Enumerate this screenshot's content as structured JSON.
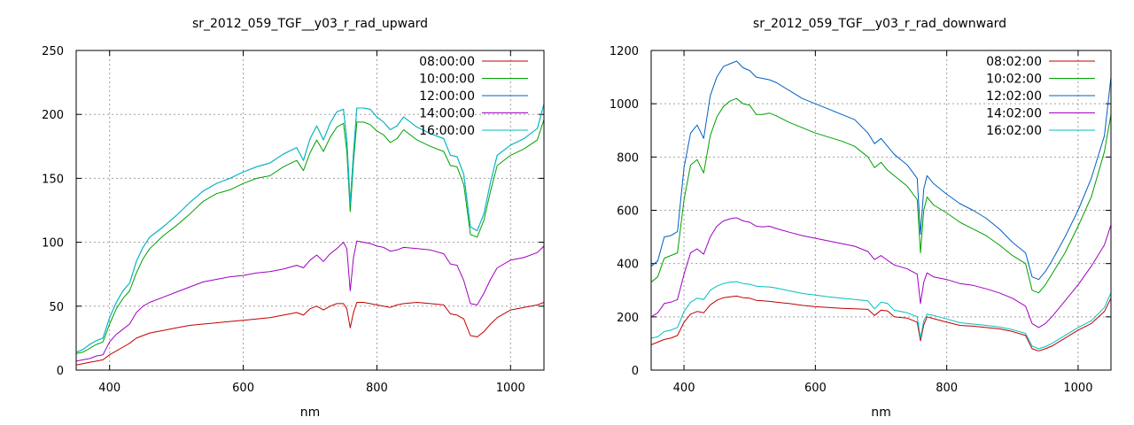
{
  "chart_data": [
    {
      "type": "line",
      "title": "sr_2012_059_TGF__y03_r_rad_upward",
      "xlabel": "nm",
      "ylabel": "",
      "xlim": [
        350,
        1050
      ],
      "ylim": [
        0,
        250
      ],
      "xticks": [
        "400",
        "600",
        "800",
        "1000"
      ],
      "yticks": [
        "0",
        "50",
        "100",
        "150",
        "200",
        "250"
      ],
      "grid": true,
      "legend_position": "top-right",
      "x": [
        350,
        360,
        370,
        380,
        390,
        400,
        410,
        420,
        430,
        440,
        450,
        460,
        480,
        500,
        520,
        540,
        560,
        580,
        600,
        620,
        640,
        660,
        680,
        690,
        700,
        710,
        720,
        730,
        740,
        750,
        755,
        760,
        765,
        770,
        780,
        790,
        800,
        810,
        820,
        830,
        840,
        860,
        880,
        900,
        910,
        920,
        930,
        940,
        950,
        960,
        970,
        980,
        1000,
        1020,
        1040,
        1050
      ],
      "series": [
        {
          "name": "08:00:00",
          "color": "#c00000",
          "values": [
            4,
            5,
            6,
            7,
            8,
            12,
            15,
            18,
            21,
            25,
            27,
            29,
            31,
            33,
            35,
            36,
            37,
            38,
            39,
            40,
            41,
            43,
            45,
            43,
            48,
            50,
            47,
            50,
            52,
            52,
            48,
            33,
            45,
            53,
            53,
            52,
            51,
            50,
            49,
            51,
            52,
            53,
            52,
            51,
            44,
            43,
            40,
            27,
            26,
            30,
            36,
            41,
            47,
            49,
            51,
            53
          ]
        },
        {
          "name": "10:00:00",
          "color": "#00a000",
          "values": [
            13,
            14,
            17,
            20,
            22,
            36,
            48,
            56,
            62,
            76,
            87,
            95,
            105,
            113,
            122,
            132,
            138,
            141,
            146,
            150,
            152,
            159,
            164,
            156,
            170,
            180,
            171,
            182,
            190,
            193,
            171,
            124,
            163,
            194,
            194,
            192,
            187,
            184,
            178,
            181,
            188,
            180,
            175,
            171,
            160,
            159,
            145,
            106,
            104,
            117,
            140,
            160,
            168,
            173,
            180,
            196
          ]
        },
        {
          "name": "12:00:00",
          "color": "#0060c0",
          "values": [
            14,
            16,
            20,
            23,
            25,
            41,
            53,
            62,
            68,
            85,
            96,
            104,
            112,
            121,
            131,
            140,
            146,
            150,
            155,
            159,
            162,
            169,
            174,
            164,
            181,
            191,
            180,
            193,
            202,
            204,
            180,
            130,
            170,
            205,
            205,
            204,
            198,
            194,
            188,
            191,
            198,
            190,
            185,
            181,
            168,
            167,
            153,
            112,
            109,
            122,
            147,
            168,
            176,
            181,
            189,
            208
          ]
        },
        {
          "name": "14:00:00",
          "color": "#a000c0",
          "values": [
            7,
            8,
            9,
            11,
            12,
            22,
            28,
            32,
            36,
            45,
            50,
            53,
            57,
            61,
            65,
            69,
            71,
            73,
            74,
            76,
            77,
            79,
            82,
            80,
            86,
            90,
            85,
            91,
            95,
            100,
            95,
            62,
            88,
            101,
            100,
            99,
            97,
            96,
            93,
            94,
            96,
            95,
            94,
            91,
            83,
            82,
            70,
            52,
            51,
            60,
            71,
            80,
            86,
            88,
            92,
            97
          ]
        },
        {
          "name": "16:00:00",
          "color": "#00c0c0",
          "values": [
            14,
            16,
            20,
            23,
            25,
            41,
            53,
            62,
            68,
            85,
            96,
            104,
            112,
            121,
            131,
            140,
            146,
            150,
            155,
            159,
            162,
            169,
            174,
            164,
            181,
            191,
            180,
            193,
            202,
            204,
            180,
            130,
            170,
            205,
            205,
            204,
            198,
            194,
            188,
            191,
            198,
            190,
            185,
            181,
            168,
            167,
            153,
            112,
            109,
            122,
            147,
            168,
            176,
            181,
            189,
            208
          ]
        }
      ]
    },
    {
      "type": "line",
      "title": "sr_2012_059_TGF__y03_r_rad_downward",
      "xlabel": "nm",
      "ylabel": "",
      "xlim": [
        350,
        1050
      ],
      "ylim": [
        0,
        1200
      ],
      "xticks": [
        "400",
        "600",
        "800",
        "1000"
      ],
      "yticks": [
        "0",
        "200",
        "400",
        "600",
        "800",
        "1000",
        "1200"
      ],
      "grid": true,
      "legend_position": "top-right",
      "x": [
        350,
        360,
        370,
        380,
        390,
        400,
        410,
        420,
        430,
        440,
        450,
        460,
        470,
        480,
        490,
        500,
        510,
        520,
        530,
        540,
        560,
        580,
        600,
        620,
        640,
        660,
        680,
        690,
        700,
        710,
        720,
        740,
        755,
        760,
        765,
        770,
        780,
        800,
        820,
        840,
        860,
        880,
        900,
        920,
        930,
        940,
        950,
        960,
        980,
        1000,
        1020,
        1040,
        1050
      ],
      "series": [
        {
          "name": "08:02:00",
          "color": "#c00000",
          "values": [
            95,
            105,
            115,
            120,
            130,
            180,
            210,
            220,
            215,
            245,
            262,
            272,
            275,
            278,
            272,
            270,
            262,
            260,
            258,
            255,
            250,
            243,
            238,
            235,
            232,
            230,
            228,
            205,
            225,
            222,
            200,
            195,
            180,
            110,
            170,
            200,
            193,
            180,
            168,
            165,
            160,
            155,
            145,
            130,
            80,
            72,
            80,
            90,
            120,
            150,
            175,
            220,
            270
          ]
        },
        {
          "name": "10:02:00",
          "color": "#00a000",
          "values": [
            330,
            350,
            420,
            430,
            440,
            640,
            770,
            790,
            740,
            880,
            950,
            990,
            1010,
            1020,
            1000,
            995,
            960,
            960,
            965,
            955,
            930,
            910,
            890,
            875,
            860,
            840,
            800,
            760,
            780,
            750,
            730,
            690,
            640,
            440,
            600,
            650,
            620,
            590,
            555,
            530,
            505,
            470,
            430,
            400,
            300,
            290,
            320,
            360,
            440,
            540,
            650,
            820,
            960
          ]
        },
        {
          "name": "12:02:00",
          "color": "#0060c0",
          "values": [
            390,
            410,
            500,
            505,
            520,
            760,
            890,
            920,
            870,
            1030,
            1100,
            1140,
            1150,
            1160,
            1135,
            1125,
            1100,
            1095,
            1090,
            1080,
            1050,
            1020,
            1000,
            980,
            960,
            940,
            890,
            850,
            870,
            840,
            810,
            770,
            720,
            510,
            680,
            730,
            700,
            660,
            625,
            600,
            570,
            530,
            480,
            440,
            350,
            340,
            370,
            410,
            500,
            600,
            720,
            880,
            1100
          ]
        },
        {
          "name": "14:02:00",
          "color": "#a000c0",
          "values": [
            200,
            215,
            250,
            255,
            265,
            360,
            440,
            455,
            435,
            500,
            540,
            560,
            568,
            572,
            560,
            555,
            540,
            538,
            540,
            532,
            518,
            505,
            495,
            485,
            475,
            465,
            445,
            415,
            430,
            412,
            395,
            380,
            360,
            250,
            330,
            365,
            350,
            340,
            325,
            318,
            305,
            290,
            270,
            240,
            175,
            160,
            175,
            200,
            260,
            320,
            390,
            470,
            545
          ]
        },
        {
          "name": "16:02:00",
          "color": "#00c0c0",
          "values": [
            120,
            125,
            145,
            150,
            160,
            220,
            255,
            270,
            265,
            300,
            315,
            325,
            330,
            332,
            325,
            322,
            315,
            313,
            312,
            308,
            298,
            288,
            282,
            275,
            270,
            265,
            260,
            230,
            255,
            250,
            225,
            215,
            200,
            120,
            185,
            210,
            205,
            192,
            178,
            173,
            168,
            162,
            152,
            138,
            90,
            80,
            88,
            100,
            130,
            160,
            185,
            235,
            290
          ]
        }
      ]
    }
  ]
}
